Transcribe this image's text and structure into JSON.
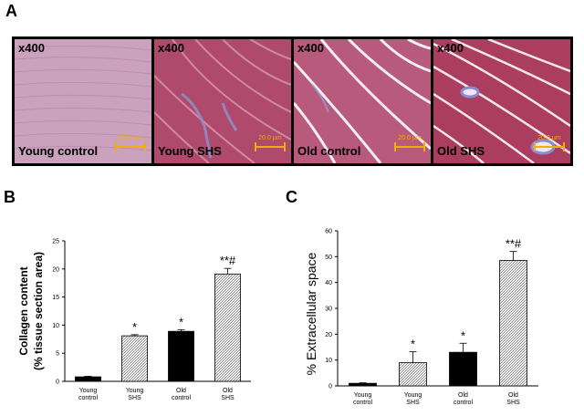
{
  "panels": {
    "a_label": "A",
    "b_label": "B",
    "c_label": "C"
  },
  "micrographs": [
    {
      "magnification": "x400",
      "label": "Young control",
      "scale_text": "20.0 µm",
      "tint": "#c98fb0"
    },
    {
      "magnification": "x400",
      "label": "Young SHS",
      "scale_text": "20.0 µm",
      "tint": "#b84868"
    },
    {
      "magnification": "x400",
      "label": "Old control",
      "scale_text": "20.0 µm",
      "tint": "#bc5a7a"
    },
    {
      "magnification": "x400",
      "label": "Old SHS",
      "scale_text": "20.0 µm",
      "tint": "#b23e62"
    }
  ],
  "chart_data": [
    {
      "type": "bar",
      "panel": "B",
      "ylabel_line1": "Collagen content",
      "ylabel_line2": "(% tissue section area)",
      "categories": [
        [
          "Young",
          "control"
        ],
        [
          "Young",
          "SHS"
        ],
        [
          "Old",
          "control"
        ],
        [
          "Old",
          "SHS"
        ]
      ],
      "values": [
        0.8,
        8.1,
        8.9,
        19.1
      ],
      "errors": [
        0.1,
        0.2,
        0.3,
        1.0
      ],
      "significance": [
        "",
        "*",
        "*",
        "**#"
      ],
      "fills": [
        "solid",
        "hatched",
        "solid",
        "hatched"
      ],
      "ylim": [
        0,
        25
      ],
      "yticks": [
        0,
        5,
        10,
        15,
        20,
        25
      ]
    },
    {
      "type": "bar",
      "panel": "C",
      "ylabel": "% Extracellular space",
      "categories": [
        [
          "Young",
          "control"
        ],
        [
          "Young",
          "SHS"
        ],
        [
          "Old",
          "control"
        ],
        [
          "Old",
          "SHS"
        ]
      ],
      "values": [
        1.0,
        9.0,
        13.0,
        48.5
      ],
      "errors": [
        0.2,
        4.2,
        3.5,
        3.5
      ],
      "significance": [
        "",
        "*",
        "*",
        "**#"
      ],
      "fills": [
        "solid",
        "hatched",
        "solid",
        "hatched"
      ],
      "ylim": [
        0,
        60
      ],
      "yticks": [
        0,
        10,
        20,
        30,
        40,
        50,
        60
      ]
    }
  ]
}
